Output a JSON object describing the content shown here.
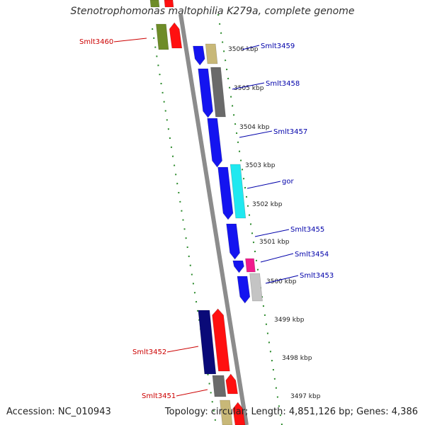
{
  "title": "Stenotrophomonas maltophilia K279a, complete genome",
  "accession": "Accession: NC_010943",
  "topology": "Topology: circular; Length: 4,851,126 bp; Genes: 4,386",
  "colors": {
    "backbone": "#8c8c8c",
    "cds_blue": "#1414f0",
    "cds_navy": "#0a0a78",
    "red": "#ff1010",
    "olive": "#6e8c28",
    "khaki": "#c8b878",
    "gray": "#6a6a6a",
    "light_gray": "#c4c4c4",
    "cyan": "#20e8f0",
    "magenta": "#f01c8c",
    "ring_dash": "#2a8a2a",
    "label_blue": "#0000aa",
    "label_red": "#cc0000"
  },
  "ticks": [
    "3506 kbp",
    "3505 kbp",
    "3504 kbp",
    "3503 kbp",
    "3502 kbp",
    "3501 kbp",
    "3500 kbp",
    "3499 kbp",
    "3498 kbp",
    "3497 kbp"
  ],
  "genes": [
    {
      "name": "Smlt3460",
      "strand": "minus",
      "color": "label_red"
    },
    {
      "name": "Smlt3459",
      "strand": "plus",
      "color": "label_blue"
    },
    {
      "name": "Smlt3458",
      "strand": "plus",
      "color": "label_blue"
    },
    {
      "name": "Smlt3457",
      "strand": "plus",
      "color": "label_blue"
    },
    {
      "name": "gor",
      "strand": "plus",
      "color": "label_blue"
    },
    {
      "name": "Smlt3455",
      "strand": "plus",
      "color": "label_blue"
    },
    {
      "name": "Smlt3454",
      "strand": "plus",
      "color": "label_blue"
    },
    {
      "name": "Smlt3453",
      "strand": "plus",
      "color": "label_blue"
    },
    {
      "name": "Smlt3452",
      "strand": "minus",
      "color": "label_red"
    },
    {
      "name": "Smlt3451",
      "strand": "minus",
      "color": "label_red"
    }
  ]
}
